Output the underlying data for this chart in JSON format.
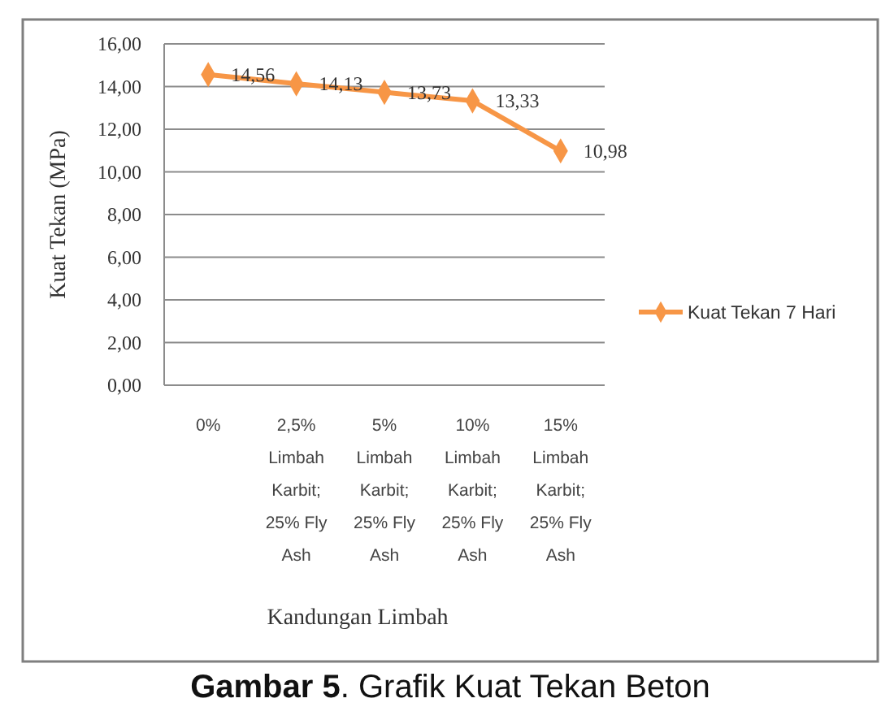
{
  "chart_data": {
    "type": "line",
    "xlabel": "Kandungan Limbah",
    "ylabel": "Kuat Tekan (MPa)",
    "annotations": [
      "Gambar 5. Grafik Kuat Tekan Beton"
    ],
    "categories": [
      "0%",
      "2,5% Limbah Karbit; 25% Fly Ash",
      "5% Limbah Karbit; 25% Fly Ash",
      "10% Limbah Karbit; 25% Fly Ash",
      "15% Limbah Karbit; 25% Fly Ash"
    ],
    "series": [
      {
        "name": "Kuat Tekan 7 Hari",
        "color": "#f79646",
        "values": [
          14.56,
          14.13,
          13.73,
          13.33,
          10.98
        ],
        "value_labels": [
          "14,56",
          "14,13",
          "13,73",
          "13,33",
          "10,98"
        ]
      }
    ],
    "ylim": [
      0,
      16
    ],
    "yticks": [
      {
        "value": 0,
        "label": "0,00"
      },
      {
        "value": 2,
        "label": "2,00"
      },
      {
        "value": 4,
        "label": "4,00"
      },
      {
        "value": 6,
        "label": "6,00"
      },
      {
        "value": 8,
        "label": "8,00"
      },
      {
        "value": 10,
        "label": "10,00"
      },
      {
        "value": 12,
        "label": "12,00"
      },
      {
        "value": 14,
        "label": "14,00"
      },
      {
        "value": 16,
        "label": "16,00"
      }
    ],
    "grid": "y",
    "legend": "right",
    "marker": "diamond",
    "line_style": "solid"
  }
}
